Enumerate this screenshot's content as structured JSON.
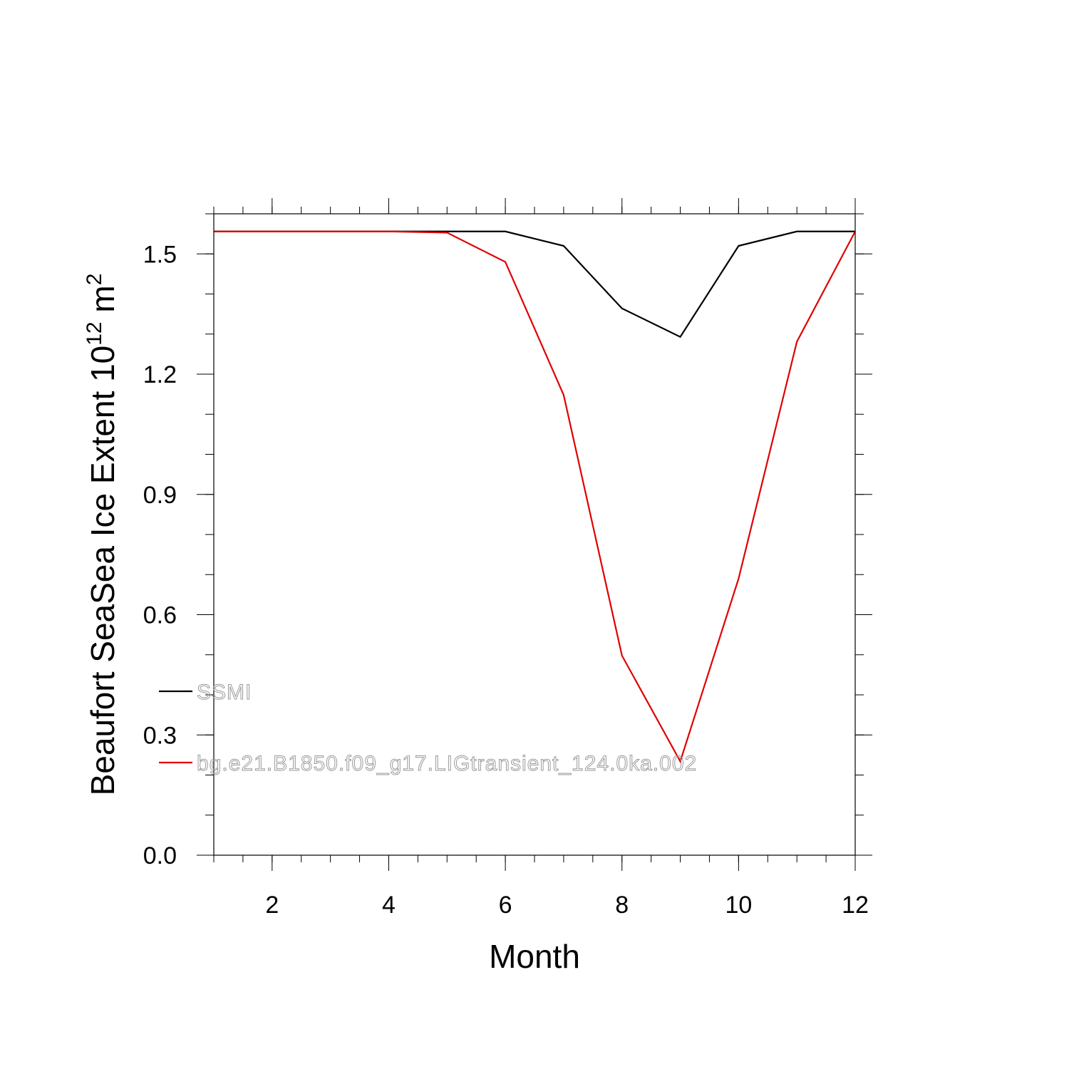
{
  "chart_data": {
    "type": "line",
    "xlabel": "Month",
    "ylabel": {
      "main": "Beaufort SeaSea Ice Extent 10",
      "sup1": "12",
      "mid": " m",
      "sup2": "2"
    },
    "xlim": [
      1,
      12
    ],
    "ylim": [
      0,
      1.6
    ],
    "xticks": [
      2,
      4,
      6,
      8,
      10,
      12
    ],
    "yticks": [
      0.0,
      0.3,
      0.6,
      0.9,
      1.2,
      1.5
    ],
    "ytick_labels": [
      "0.0",
      "0.3",
      "0.6",
      "0.9",
      "1.2",
      "1.5"
    ],
    "x": [
      1,
      2,
      3,
      4,
      5,
      6,
      7,
      8,
      9,
      10,
      11,
      12
    ],
    "series": [
      {
        "name": "SSMI",
        "color": "#000000",
        "values": [
          1.556,
          1.556,
          1.556,
          1.556,
          1.556,
          1.556,
          1.52,
          1.364,
          1.293,
          1.52,
          1.556,
          1.556
        ]
      },
      {
        "name": "bg.e21.B1850.f09_g17.LIGtransient_124.0ka.002",
        "color": "#e00000",
        "values": [
          1.556,
          1.556,
          1.556,
          1.556,
          1.553,
          1.48,
          1.148,
          0.498,
          0.234,
          0.69,
          1.281,
          1.556
        ]
      }
    ],
    "legend_position": "inside-lower-left",
    "grid": false
  }
}
